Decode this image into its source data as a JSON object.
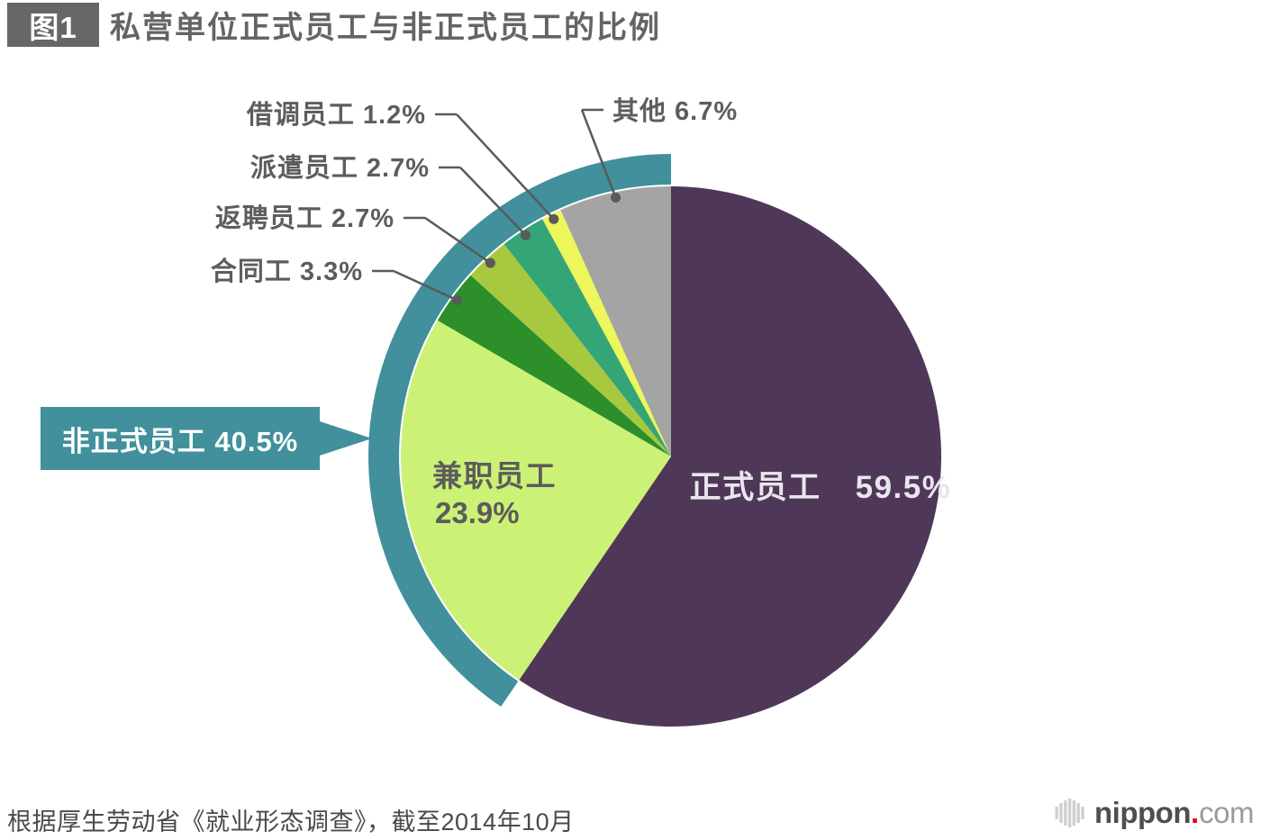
{
  "header": {
    "badge": "图1",
    "title": "私营单位正式员工与非正式员工的比例"
  },
  "chart_data": {
    "type": "pie",
    "title": "私营单位正式员工与非正式员工的比例",
    "value_unit": "%",
    "rotation": "starts at 12 o'clock, clockwise",
    "legend": "none",
    "slices": [
      {
        "id": "regular-employees",
        "label": "正式员工",
        "value": 59.5,
        "color": "#4f3857",
        "label_placement": "inside",
        "label_color": "#e9e5ee"
      },
      {
        "id": "part-time-employees",
        "label": "兼职员工",
        "value": 23.9,
        "color": "#ccf177",
        "label_placement": "inside",
        "label_color": "#5c5c5c"
      },
      {
        "id": "contract-workers",
        "label": "合同工",
        "value": 3.3,
        "color": "#2c8f2a",
        "label_placement": "leader"
      },
      {
        "id": "rehired-employees",
        "label": "返聘员工",
        "value": 2.7,
        "color": "#a8c83f",
        "label_placement": "leader"
      },
      {
        "id": "dispatched-employees",
        "label": "派遣员工",
        "value": 2.7,
        "color": "#34a577",
        "label_placement": "leader"
      },
      {
        "id": "seconded-employees",
        "label": "借调员工",
        "value": 1.2,
        "color": "#edf65a",
        "label_placement": "leader"
      },
      {
        "id": "other",
        "label": "其他",
        "value": 6.7,
        "color": "#a4a4a4",
        "label_placement": "leader"
      }
    ],
    "outer_ring": {
      "id": "non-regular-group",
      "label": "非正式员工",
      "value": 40.5,
      "color": "#41909c",
      "spans_slices": [
        "兼职员工",
        "合同工",
        "返聘员工",
        "派遣员工",
        "借调员工",
        "其他"
      ]
    },
    "callout": {
      "text": "非正式员工 40.5%",
      "bg_color": "#41909c",
      "text_color": "#ffffff"
    },
    "leader_line_color": "#5a5a5a",
    "leader_label_color": "#5d5d5d"
  },
  "footer": {
    "source": "根据厚生劳动省《就业形态调查》，截至2014年10月"
  },
  "logo": {
    "icon": "striped-hexagon",
    "name": "nippon",
    "dot": ".",
    "tld": "com",
    "name_color": "#4f4f4f",
    "dot_color": "#e60012",
    "tld_color": "#9b9b9b",
    "icon_color": "#cfcfcf"
  }
}
